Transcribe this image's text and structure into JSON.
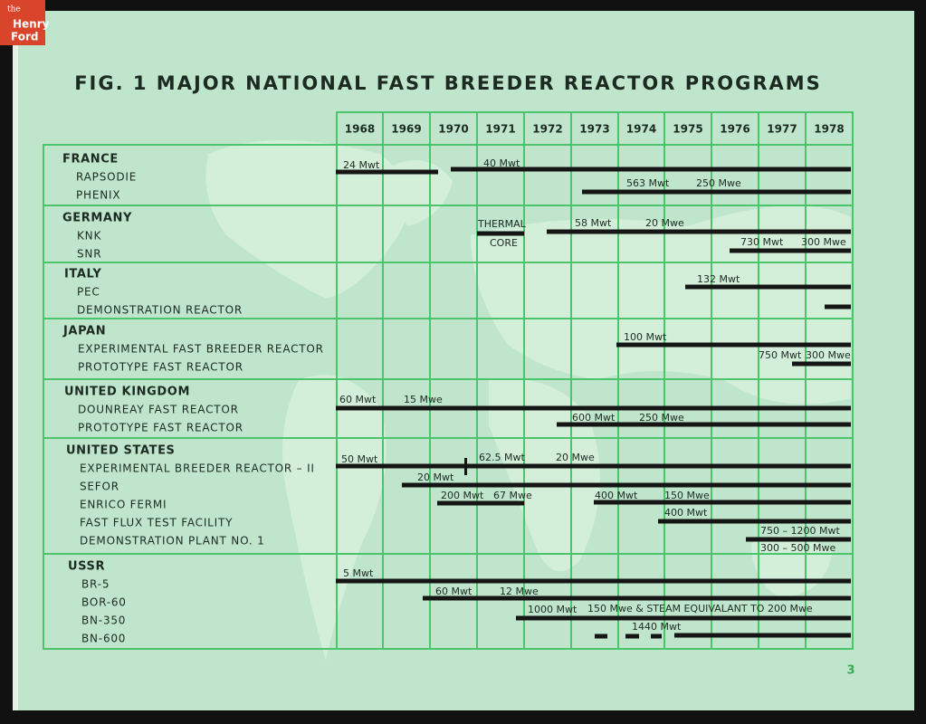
{
  "logo": {
    "line1": "the",
    "line2": "Henry",
    "line3": "Ford"
  },
  "title": "FIG. 1 MAJOR NATIONAL FAST BREEDER REACTOR PROGRAMS",
  "years": [
    "1968",
    "1969",
    "1970",
    "1971",
    "1972",
    "1973",
    "1974",
    "1975",
    "1976",
    "1977",
    "1978"
  ],
  "sections": [
    {
      "name": "FRANCE",
      "items": [
        "RAPSODIE",
        "PHENIX"
      ]
    },
    {
      "name": "GERMANY",
      "items": [
        "KNK",
        "SNR"
      ]
    },
    {
      "name": "ITALY",
      "items": [
        "PEC",
        "DEMONSTRATION REACTOR"
      ]
    },
    {
      "name": "JAPAN",
      "items": [
        "EXPERIMENTAL FAST BREEDER REACTOR",
        "PROTOTYPE FAST REACTOR"
      ]
    },
    {
      "name": "UNITED KINGDOM",
      "items": [
        "DOUNREAY FAST REACTOR",
        "PROTOTYPE FAST REACTOR"
      ]
    },
    {
      "name": "UNITED STATES",
      "items": [
        "EXPERIMENTAL BREEDER REACTOR – II",
        "SEFOR",
        "ENRICO FERMI",
        "FAST FLUX TEST FACILITY",
        "DEMONSTRATION PLANT NO. 1"
      ]
    },
    {
      "name": "USSR",
      "items": [
        "BR-5",
        "BOR-60",
        "BN-350",
        "BN-600"
      ]
    }
  ],
  "annotations": [
    "24 Mwt",
    "40 Mwt",
    "563 Mwt",
    "250 Mwe",
    "THERMAL",
    "CORE",
    "58 Mwt",
    "20 Mwe",
    "730 Mwt",
    "300 Mwe",
    "132 Mwt",
    "100 Mwt",
    "750 Mwt",
    "300 Mwe",
    "60 Mwt",
    "15 Mwe",
    "600 Mwt",
    "250 Mwe",
    "50 Mwt",
    "62.5 Mwt",
    "20 Mwe",
    "20 Mwt",
    "200 Mwt",
    "67 Mwe",
    "400 Mwt",
    "150 Mwe",
    "400 Mwt",
    "750 – 1200 Mwt",
    "300 – 500 Mwe",
    "5 Mwt",
    "60 Mwt",
    "12 Mwe",
    "1000 Mwt",
    "150 Mwe & STEAM EQUIVALANT TO 200 Mwe",
    "1440 Mwt"
  ],
  "page_number": "3"
}
